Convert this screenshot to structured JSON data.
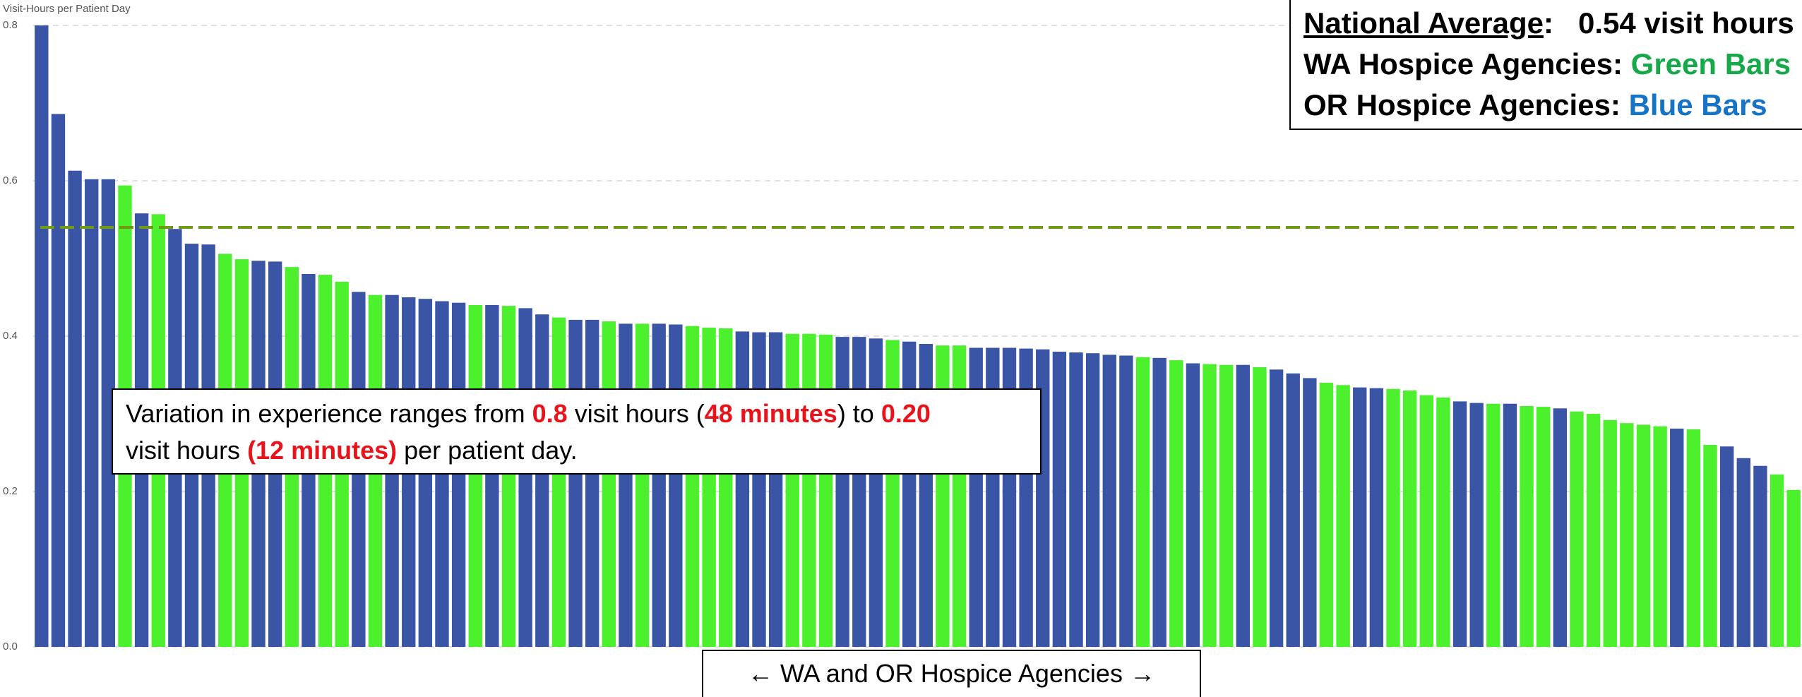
{
  "chart_data": {
    "type": "bar",
    "y_axis_label": "Visit-Hours per Patient Day",
    "ylim": [
      0,
      0.8
    ],
    "yticks": [
      {
        "value": 0,
        "label": "0.0"
      },
      0.2,
      0.4,
      0.6,
      0.8
    ],
    "grid": true,
    "values": [
      0.8,
      0.686,
      0.613,
      0.602,
      0.602,
      0.594,
      0.558,
      0.557,
      0.538,
      0.519,
      0.518,
      0.506,
      0.499,
      0.497,
      0.496,
      0.489,
      0.48,
      0.479,
      0.47,
      0.457,
      0.453,
      0.453,
      0.45,
      0.448,
      0.445,
      0.443,
      0.44,
      0.44,
      0.439,
      0.436,
      0.428,
      0.424,
      0.421,
      0.421,
      0.419,
      0.416,
      0.416,
      0.416,
      0.415,
      0.413,
      0.411,
      0.41,
      0.406,
      0.405,
      0.405,
      0.403,
      0.403,
      0.402,
      0.399,
      0.399,
      0.397,
      0.395,
      0.393,
      0.39,
      0.388,
      0.388,
      0.385,
      0.385,
      0.385,
      0.384,
      0.383,
      0.38,
      0.379,
      0.378,
      0.376,
      0.375,
      0.373,
      0.372,
      0.369,
      0.365,
      0.364,
      0.363,
      0.363,
      0.36,
      0.357,
      0.352,
      0.346,
      0.34,
      0.337,
      0.334,
      0.333,
      0.332,
      0.33,
      0.324,
      0.321,
      0.316,
      0.314,
      0.313,
      0.313,
      0.31,
      0.309,
      0.307,
      0.303,
      0.3,
      0.292,
      0.288,
      0.286,
      0.284,
      0.281,
      0.28,
      0.26,
      0.258,
      0.243,
      0.233,
      0.222,
      0.202
    ],
    "colors": [
      "#3b55a6",
      "#3b55a6",
      "#3b55a6",
      "#3b55a6",
      "#3b55a6",
      "#4cf02c",
      "#3b55a6",
      "#4cf02c",
      "#3b55a6",
      "#3b55a6",
      "#3b55a6",
      "#4cf02c",
      "#4cf02c",
      "#3b55a6",
      "#3b55a6",
      "#4cf02c",
      "#3b55a6",
      "#4cf02c",
      "#4cf02c",
      "#3b55a6",
      "#4cf02c",
      "#3b55a6",
      "#3b55a6",
      "#3b55a6",
      "#3b55a6",
      "#3b55a6",
      "#4cf02c",
      "#3b55a6",
      "#4cf02c",
      "#3b55a6",
      "#3b55a6",
      "#4cf02c",
      "#3b55a6",
      "#3b55a6",
      "#4cf02c",
      "#3b55a6",
      "#4cf02c",
      "#3b55a6",
      "#3b55a6",
      "#4cf02c",
      "#4cf02c",
      "#4cf02c",
      "#3b55a6",
      "#3b55a6",
      "#3b55a6",
      "#4cf02c",
      "#4cf02c",
      "#4cf02c",
      "#3b55a6",
      "#3b55a6",
      "#3b55a6",
      "#4cf02c",
      "#3b55a6",
      "#3b55a6",
      "#4cf02c",
      "#4cf02c",
      "#3b55a6",
      "#3b55a6",
      "#3b55a6",
      "#3b55a6",
      "#3b55a6",
      "#3b55a6",
      "#3b55a6",
      "#3b55a6",
      "#3b55a6",
      "#3b55a6",
      "#4cf02c",
      "#3b55a6",
      "#4cf02c",
      "#3b55a6",
      "#4cf02c",
      "#4cf02c",
      "#3b55a6",
      "#4cf02c",
      "#3b55a6",
      "#3b55a6",
      "#3b55a6",
      "#4cf02c",
      "#4cf02c",
      "#3b55a6",
      "#3b55a6",
      "#4cf02c",
      "#4cf02c",
      "#4cf02c",
      "#4cf02c",
      "#3b55a6",
      "#3b55a6",
      "#4cf02c",
      "#3b55a6",
      "#4cf02c",
      "#4cf02c",
      "#3b55a6",
      "#4cf02c",
      "#4cf02c",
      "#4cf02c",
      "#4cf02c",
      "#4cf02c",
      "#4cf02c",
      "#3b55a6",
      "#4cf02c",
      "#4cf02c",
      "#3b55a6",
      "#3b55a6",
      "#3b55a6",
      "#4cf02c",
      "#4cf02c"
    ],
    "reference_line": {
      "value": 0.54,
      "color": "#6f9a12"
    },
    "legend_box": {
      "lines": [
        [
          {
            "text": "National Average",
            "underline": true
          },
          {
            "text": ":   0.54 visit hours"
          }
        ],
        [
          {
            "text": "WA Hospice Agencies: "
          },
          {
            "text": "Green Bars",
            "color": "#17a84a"
          }
        ],
        [
          {
            "text": "OR Hospice Agencies: "
          },
          {
            "text": "Blue Bars",
            "color": "#1574c6"
          }
        ]
      ]
    },
    "annotation": {
      "lines": [
        [
          {
            "text": "Variation in experience ranges from "
          },
          {
            "text": "0.8",
            "color": "#e8141b",
            "bold": true
          },
          {
            "text": " visit hours ("
          },
          {
            "text": "48 minutes",
            "color": "#e8141b",
            "bold": true
          },
          {
            "text": ") to "
          },
          {
            "text": "0.20",
            "color": "#e8141b",
            "bold": true
          }
        ],
        [
          {
            "text": "visit hours "
          },
          {
            "text": "(12 minutes)",
            "color": "#e8141b",
            "bold": true
          },
          {
            "text": " per patient day."
          }
        ]
      ]
    },
    "x_axis_label": "← WA and OR Hospice Agencies →"
  }
}
